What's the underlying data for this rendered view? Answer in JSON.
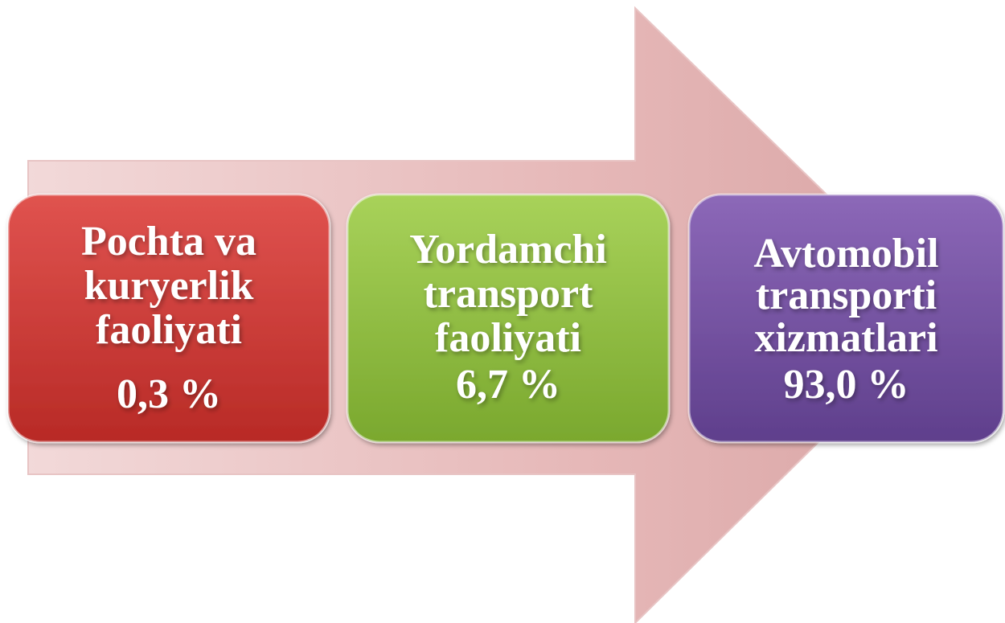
{
  "nodes": [
    {
      "lines": [
        "Pochta va",
        "kuryerlik",
        "faoliyati"
      ],
      "value": "0,3 %"
    },
    {
      "lines": [
        "Yordamchi",
        "transport",
        "faoliyati"
      ],
      "value": "6,7 %"
    },
    {
      "lines": [
        "Avtomobil",
        "transporti",
        "xizmatlari"
      ],
      "value": "93,0 %"
    }
  ]
}
